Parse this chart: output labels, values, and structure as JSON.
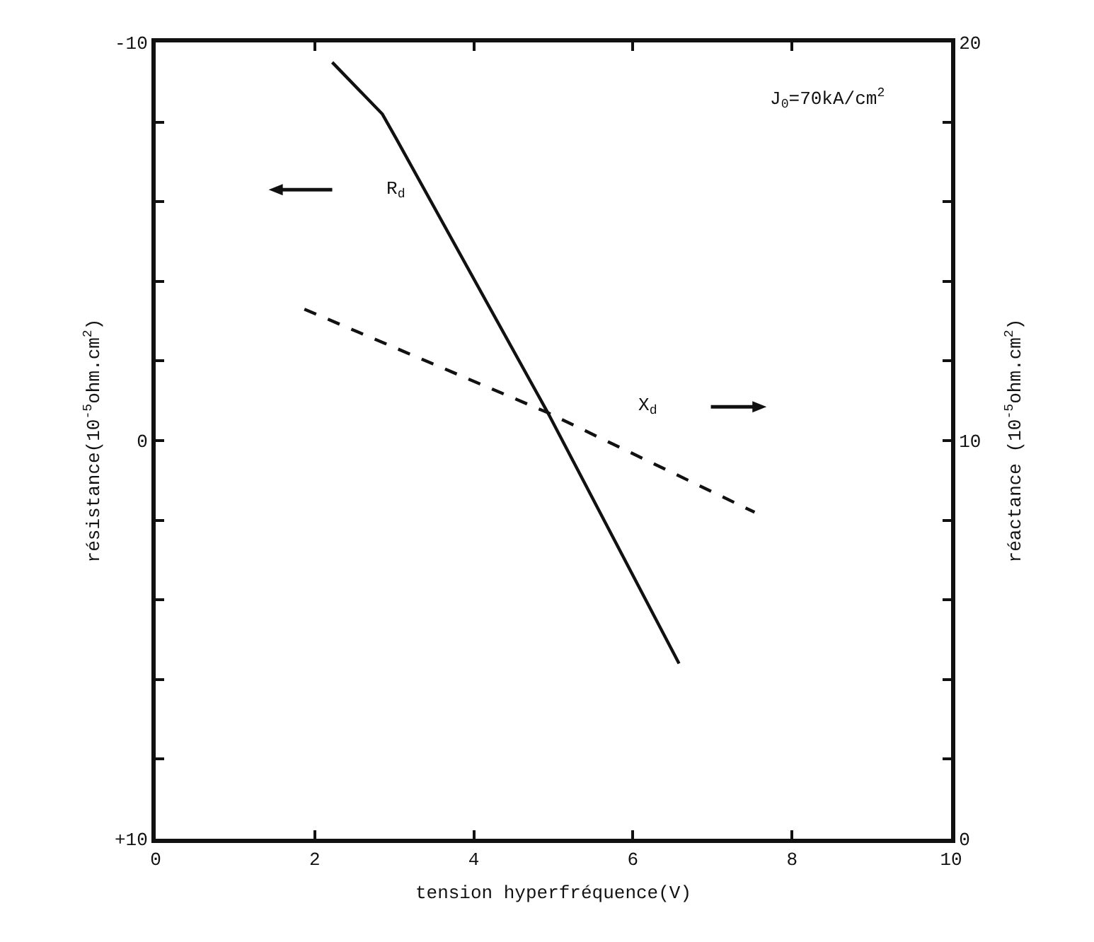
{
  "chart_data": {
    "type": "line",
    "xlabel": "tension hyperfréquence(V)",
    "ylabel": "résistance(10$^{-5}$ohm.cm$^{2}$)",
    "y2label": "réactance (10$^{-5}$ohm.cm$^{2}$)",
    "annotations": [
      "J$_{0}$=70kA/cm$^{2}$"
    ],
    "series": [
      {
        "name": "R$_{d}$",
        "color": "#111111",
        "line_style": "solid",
        "x": [
          2.22,
          2.85,
          3.02,
          4.93,
          6.58
        ],
        "values": [
          -9.5,
          -8.2,
          -7.6,
          -0.7,
          5.6
        ]
      },
      {
        "name": "X$_{d}$",
        "color": "#111111",
        "line_style": "dashed",
        "axis": "y2",
        "x": [
          1.87,
          4.93,
          7.53
        ],
        "values": [
          13.3,
          10.7,
          8.2
        ]
      }
    ],
    "xlim": [
      0,
      10
    ],
    "xticks": [
      0,
      2,
      4,
      6,
      8,
      10
    ],
    "ylim": [
      10,
      -10
    ],
    "yticks": [
      {
        "value": -10,
        "label": "-10"
      },
      {
        "value": -8,
        "label": null
      },
      {
        "value": -6,
        "label": null
      },
      {
        "value": -4,
        "label": null
      },
      {
        "value": -2,
        "label": null
      },
      0,
      {
        "value": 2,
        "label": null
      },
      {
        "value": 4,
        "label": null
      },
      {
        "value": 6,
        "label": null
      },
      {
        "value": 8,
        "label": null
      },
      {
        "value": 10,
        "label": "+10"
      }
    ],
    "y2lim": [
      0,
      20
    ],
    "y2ticks": [
      0,
      {
        "value": 2,
        "label": null
      },
      {
        "value": 4,
        "label": null
      },
      {
        "value": 6,
        "label": null
      },
      {
        "value": 8,
        "label": null
      },
      10,
      {
        "value": 12,
        "label": null
      },
      {
        "value": 14,
        "label": null
      },
      {
        "value": 16,
        "label": null
      },
      {
        "value": 18,
        "label": null
      },
      20
    ],
    "marker": "none",
    "grid": false,
    "legend": false
  }
}
